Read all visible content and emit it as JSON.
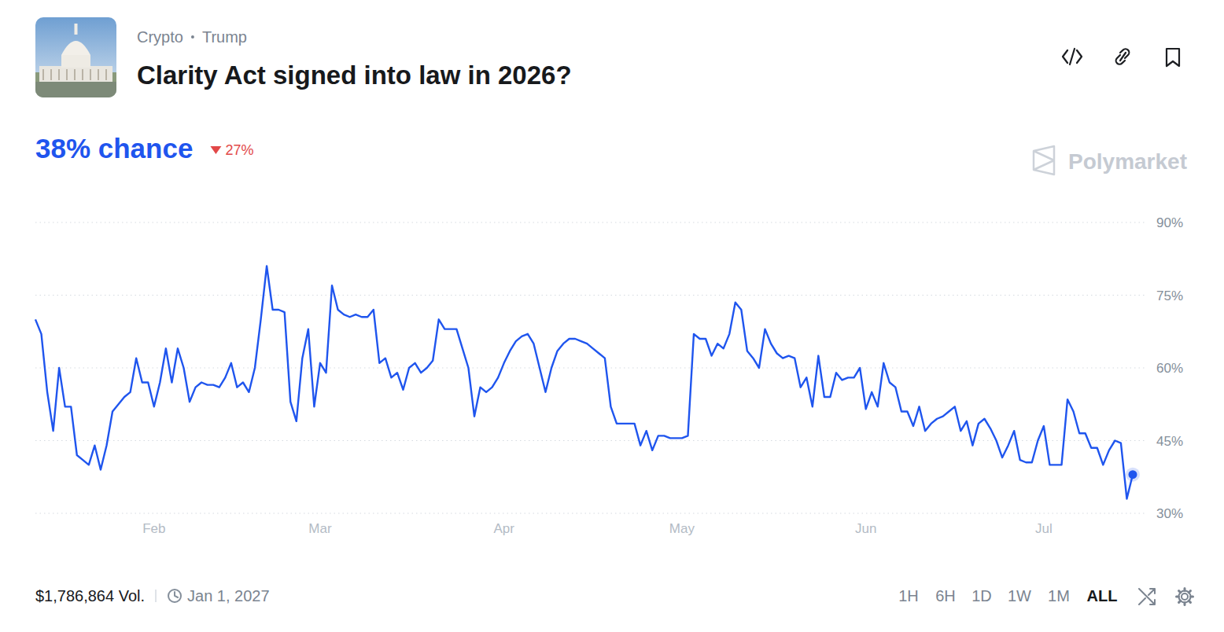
{
  "header": {
    "tags": [
      "Crypto",
      "Trump"
    ],
    "title": "Clarity Act signed into law in 2026?",
    "chance": {
      "value": 38,
      "label": "38% chance"
    },
    "change": "27%",
    "brand": "Polymarket"
  },
  "chart_data": {
    "type": "line",
    "color": "#1f55ee",
    "grid": true,
    "categories": [
      null,
      null,
      null,
      null,
      null,
      null,
      null,
      null,
      null,
      null,
      null,
      null,
      null,
      null,
      null,
      null,
      null,
      null,
      null,
      null,
      "Feb",
      null,
      null,
      null,
      null,
      null,
      null,
      null,
      null,
      null,
      null,
      null,
      null,
      null,
      null,
      null,
      null,
      null,
      null,
      null,
      null,
      null,
      null,
      null,
      null,
      null,
      null,
      null,
      "Mar",
      null,
      null,
      null,
      null,
      null,
      null,
      null,
      null,
      null,
      null,
      null,
      null,
      null,
      null,
      null,
      null,
      null,
      null,
      null,
      null,
      null,
      null,
      null,
      null,
      null,
      null,
      null,
      null,
      null,
      null,
      "Apr",
      null,
      null,
      null,
      null,
      null,
      null,
      null,
      null,
      null,
      null,
      null,
      null,
      null,
      null,
      null,
      null,
      null,
      null,
      null,
      null,
      null,
      null,
      null,
      null,
      null,
      null,
      null,
      null,
      null,
      "May",
      null,
      null,
      null,
      null,
      null,
      null,
      null,
      null,
      null,
      null,
      null,
      null,
      null,
      null,
      null,
      null,
      null,
      null,
      null,
      null,
      null,
      null,
      null,
      null,
      null,
      null,
      null,
      null,
      null,
      null,
      "Jun",
      null,
      null,
      null,
      null,
      null,
      null,
      null,
      null,
      null,
      null,
      null,
      null,
      null,
      null,
      null,
      null,
      null,
      null,
      null,
      null,
      null,
      null,
      null,
      null,
      null,
      null,
      null,
      null,
      null,
      "Jul",
      null,
      null,
      null,
      null,
      null,
      null,
      null,
      null,
      null,
      null,
      null,
      null,
      null,
      null,
      null
    ],
    "values": [
      70,
      67,
      55,
      47,
      60,
      52,
      52,
      42,
      41,
      40,
      44,
      39,
      44,
      51,
      52.5,
      54,
      55,
      62,
      57,
      57,
      52,
      57,
      64,
      57,
      64,
      60,
      53,
      56,
      57,
      56.5,
      56.5,
      56,
      58,
      61,
      56,
      57,
      55,
      60,
      70,
      81,
      72,
      72,
      71.5,
      53,
      49,
      62,
      68,
      52,
      61,
      59,
      77,
      72,
      71,
      70.5,
      71,
      70.5,
      70.5,
      72,
      61,
      62,
      58,
      59,
      55.5,
      60,
      61,
      59,
      60,
      61.5,
      70,
      68,
      68,
      68,
      64,
      60,
      50,
      56,
      55,
      56,
      58,
      61,
      63.5,
      65.5,
      66.5,
      67,
      65,
      60,
      55,
      60,
      63.5,
      65,
      66,
      66,
      65.5,
      65,
      64,
      63,
      62,
      52,
      48.5,
      48.5,
      48.5,
      48.5,
      44,
      47,
      43,
      46,
      46,
      45.5,
      45.5,
      45.5,
      46,
      67,
      66,
      66,
      62.5,
      65,
      64,
      67,
      73.5,
      72,
      63.5,
      62,
      60,
      68,
      65,
      63,
      62,
      62.5,
      62,
      56,
      58,
      52,
      62.5,
      54,
      54,
      59,
      57.5,
      58,
      58,
      60,
      51.5,
      55,
      52,
      61,
      57,
      56,
      51,
      51,
      48,
      52,
      47,
      48.5,
      49.5,
      50,
      51,
      52,
      47,
      49,
      44,
      48.5,
      49.5,
      47.5,
      45,
      41.5,
      44,
      47,
      41,
      40.5,
      40.5,
      45,
      48,
      40,
      40,
      40,
      53.5,
      51,
      46.5,
      46.5,
      43.5,
      43.5,
      40,
      43,
      45,
      44.5,
      33,
      38
    ],
    "ylim": [
      30,
      90
    ],
    "yticks": [
      {
        "value": 30,
        "label": "30%"
      },
      {
        "value": 45,
        "label": "45%"
      },
      {
        "value": 60,
        "label": "60%"
      },
      {
        "value": 75,
        "label": "75%"
      },
      {
        "value": 90,
        "label": "90%"
      }
    ]
  },
  "footer": {
    "volume": "$1,786,864 Vol.",
    "end_date": "Jan 1, 2027",
    "ranges": [
      "1H",
      "6H",
      "1D",
      "1W",
      "1M",
      "ALL"
    ],
    "active_range": "ALL"
  }
}
